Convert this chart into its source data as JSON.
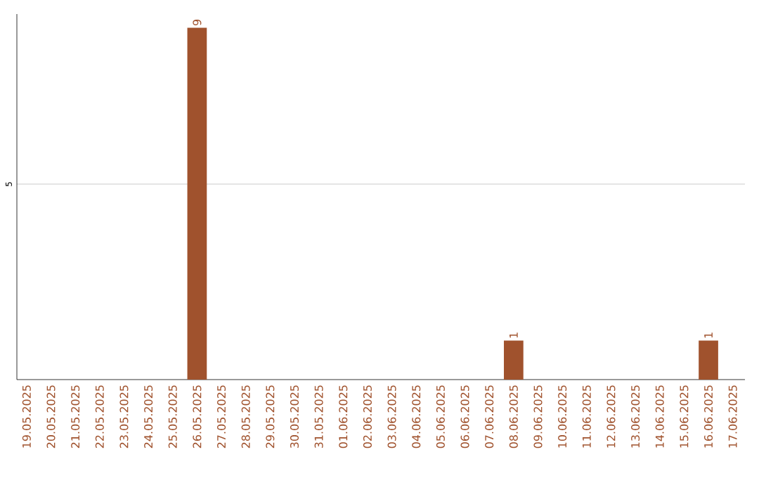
{
  "chart_data": {
    "type": "bar",
    "categories": [
      "19.05.2025",
      "20.05.2025",
      "21.05.2025",
      "22.05.2025",
      "23.05.2025",
      "24.05.2025",
      "25.05.2025",
      "26.05.2025",
      "27.05.2025",
      "28.05.2025",
      "29.05.2025",
      "30.05.2025",
      "31.05.2025",
      "01.06.2025",
      "02.06.2025",
      "03.06.2025",
      "04.06.2025",
      "05.06.2025",
      "06.06.2025",
      "07.06.2025",
      "08.06.2025",
      "09.06.2025",
      "10.06.2025",
      "11.06.2025",
      "12.06.2025",
      "13.06.2025",
      "14.06.2025",
      "15.06.2025",
      "16.06.2025",
      "17.06.2025"
    ],
    "values": [
      0,
      0,
      0,
      0,
      0,
      0,
      0,
      9,
      0,
      0,
      0,
      0,
      0,
      0,
      0,
      0,
      0,
      0,
      0,
      0,
      1,
      0,
      0,
      0,
      0,
      0,
      0,
      0,
      1,
      0
    ],
    "value_labels": [
      null,
      null,
      null,
      null,
      null,
      null,
      null,
      "9",
      null,
      null,
      null,
      null,
      null,
      null,
      null,
      null,
      null,
      null,
      null,
      null,
      "1",
      null,
      null,
      null,
      null,
      null,
      null,
      null,
      "1",
      null
    ],
    "color": "#a0522d",
    "ylim": [
      0,
      9.35
    ],
    "yticks": [
      5
    ],
    "grid": "y"
  }
}
